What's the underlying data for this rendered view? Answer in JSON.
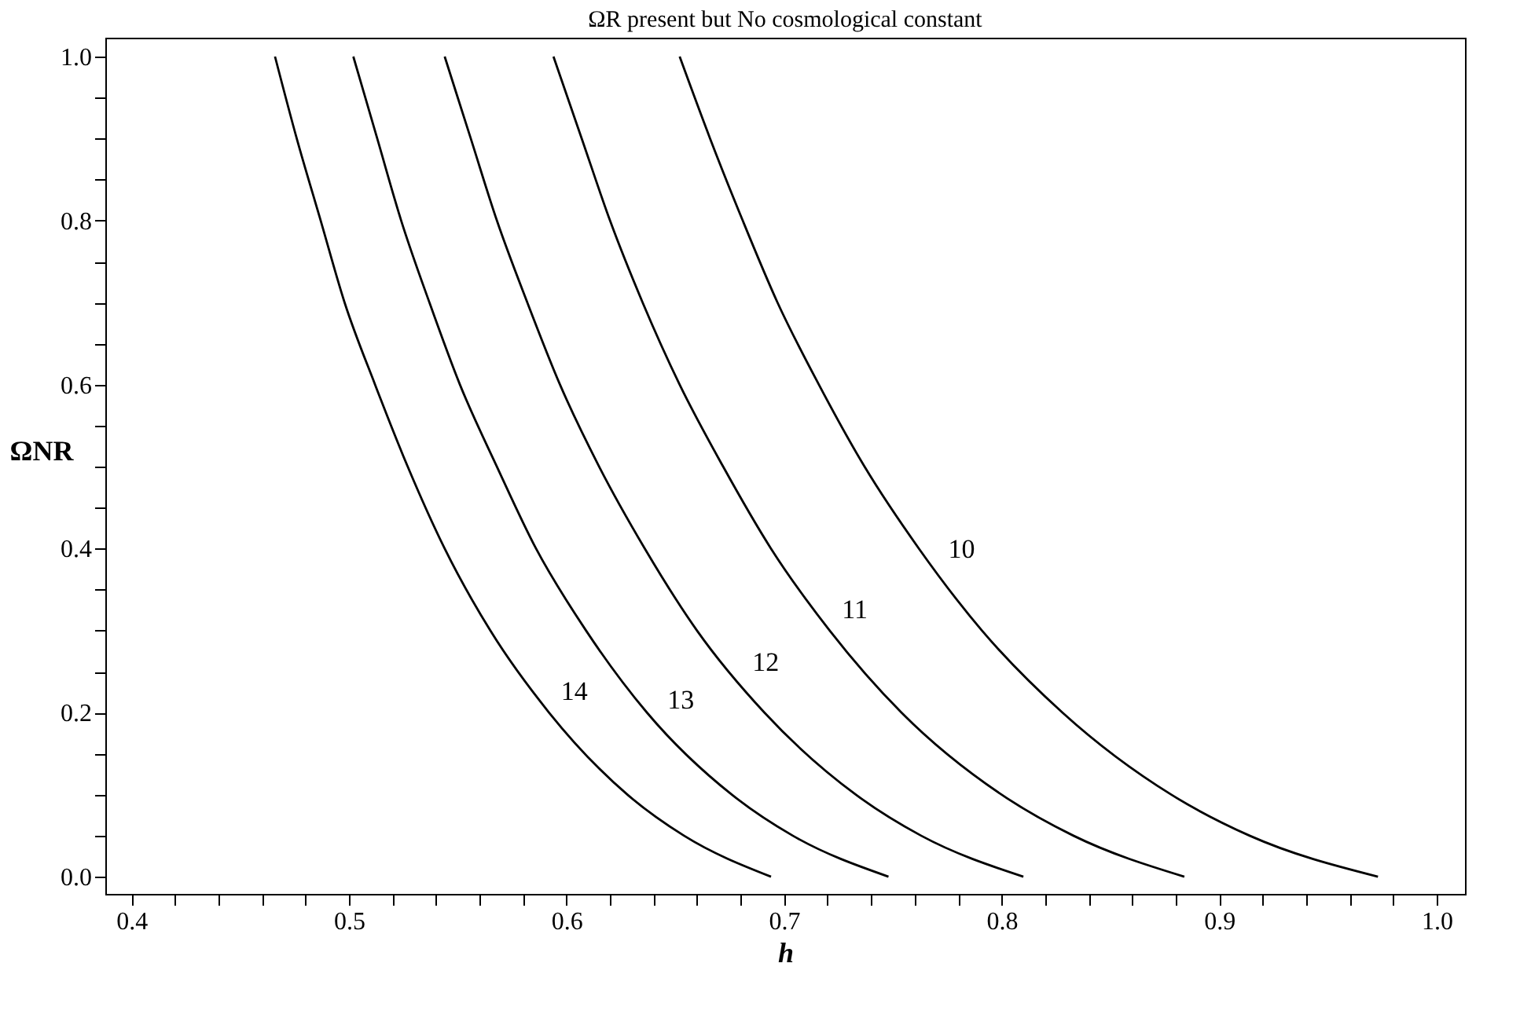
{
  "chart_data": {
    "type": "line",
    "title": "ΩR present but No cosmological constant",
    "xlabel": "h",
    "ylabel": "ΩNR",
    "xlim": [
      0.388,
      1.013
    ],
    "ylim": [
      -0.021,
      1.023
    ],
    "xticks": [
      0.4,
      {
        "value": 0.42,
        "label": null
      },
      {
        "value": 0.44,
        "label": null
      },
      {
        "value": 0.46,
        "label": null
      },
      {
        "value": 0.48,
        "label": null
      },
      0.5,
      {
        "value": 0.52,
        "label": null
      },
      {
        "value": 0.54,
        "label": null
      },
      {
        "value": 0.56,
        "label": null
      },
      {
        "value": 0.58,
        "label": null
      },
      0.6,
      {
        "value": 0.62,
        "label": null
      },
      {
        "value": 0.64,
        "label": null
      },
      {
        "value": 0.66,
        "label": null
      },
      {
        "value": 0.68,
        "label": null
      },
      0.7,
      {
        "value": 0.72,
        "label": null
      },
      {
        "value": 0.74,
        "label": null
      },
      {
        "value": 0.76,
        "label": null
      },
      {
        "value": 0.78,
        "label": null
      },
      0.8,
      {
        "value": 0.82,
        "label": null
      },
      {
        "value": 0.84,
        "label": null
      },
      {
        "value": 0.86,
        "label": null
      },
      {
        "value": 0.88,
        "label": null
      },
      0.9,
      {
        "value": 0.92,
        "label": null
      },
      {
        "value": 0.94,
        "label": null
      },
      {
        "value": 0.96,
        "label": null
      },
      {
        "value": 0.98,
        "label": null
      },
      {
        "value": 1,
        "label": "1.0"
      }
    ],
    "yticks": [
      {
        "value": 0,
        "label": "0.0"
      },
      {
        "value": 0.05,
        "label": null
      },
      {
        "value": 0.1,
        "label": null
      },
      {
        "value": 0.15,
        "label": null
      },
      0.2,
      {
        "value": 0.25,
        "label": null
      },
      {
        "value": 0.3,
        "label": null
      },
      {
        "value": 0.35,
        "label": null
      },
      0.4,
      {
        "value": 0.45,
        "label": null
      },
      {
        "value": 0.5,
        "label": null
      },
      {
        "value": 0.55,
        "label": null
      },
      0.6,
      {
        "value": 0.65,
        "label": null
      },
      {
        "value": 0.7,
        "label": null
      },
      {
        "value": 0.75,
        "label": null
      },
      0.8,
      {
        "value": 0.85,
        "label": null
      },
      {
        "value": 0.9,
        "label": null
      },
      {
        "value": 0.95,
        "label": null
      },
      {
        "value": 1,
        "label": "1.0"
      }
    ],
    "series": [
      {
        "color": "#000000",
        "x": [
          0.466,
          0.476,
          0.487,
          0.498,
          0.512,
          0.527,
          0.544,
          0.565,
          0.592,
          0.628,
          0.654,
          0.694
        ],
        "values": [
          1,
          0.9,
          0.8,
          0.7,
          0.6,
          0.5,
          0.4,
          0.3,
          0.2,
          0.1,
          0.05,
          0
        ]
      },
      {
        "color": "#000000",
        "x": [
          0.502,
          0.513,
          0.524,
          0.537,
          0.551,
          0.568,
          0.586,
          0.609,
          0.637,
          0.676,
          0.704,
          0.748
        ],
        "values": [
          1,
          0.9,
          0.8,
          0.7,
          0.6,
          0.5,
          0.4,
          0.3,
          0.2,
          0.1,
          0.05,
          0
        ]
      },
      {
        "color": "#000000",
        "x": [
          0.544,
          0.556,
          0.568,
          0.582,
          0.597,
          0.615,
          0.636,
          0.66,
          0.691,
          0.733,
          0.763,
          0.81
        ],
        "values": [
          1,
          0.9,
          0.8,
          0.7,
          0.6,
          0.5,
          0.4,
          0.3,
          0.2,
          0.1,
          0.05,
          0
        ]
      },
      {
        "color": "#000000",
        "x": [
          0.594,
          0.607,
          0.62,
          0.635,
          0.652,
          0.672,
          0.694,
          0.721,
          0.754,
          0.8,
          0.833,
          0.884
        ],
        "values": [
          1,
          0.9,
          0.8,
          0.7,
          0.6,
          0.5,
          0.4,
          0.3,
          0.2,
          0.1,
          0.05,
          0
        ]
      },
      {
        "color": "#000000",
        "x": [
          0.652,
          0.666,
          0.681,
          0.697,
          0.716,
          0.737,
          0.762,
          0.791,
          0.828,
          0.878,
          0.914,
          0.973
        ],
        "values": [
          1,
          0.9,
          0.8,
          0.7,
          0.6,
          0.5,
          0.4,
          0.3,
          0.2,
          0.1,
          0.05,
          0
        ]
      }
    ],
    "annotations": [
      {
        "text": "14",
        "x": 0.592,
        "y": 0.2
      },
      {
        "text": "13",
        "x": 0.641,
        "y": 0.19
      },
      {
        "text": "12",
        "x": 0.68,
        "y": 0.236
      },
      {
        "text": "11",
        "x": 0.721,
        "y": 0.3
      },
      {
        "text": "10",
        "x": 0.77,
        "y": 0.374
      }
    ]
  }
}
